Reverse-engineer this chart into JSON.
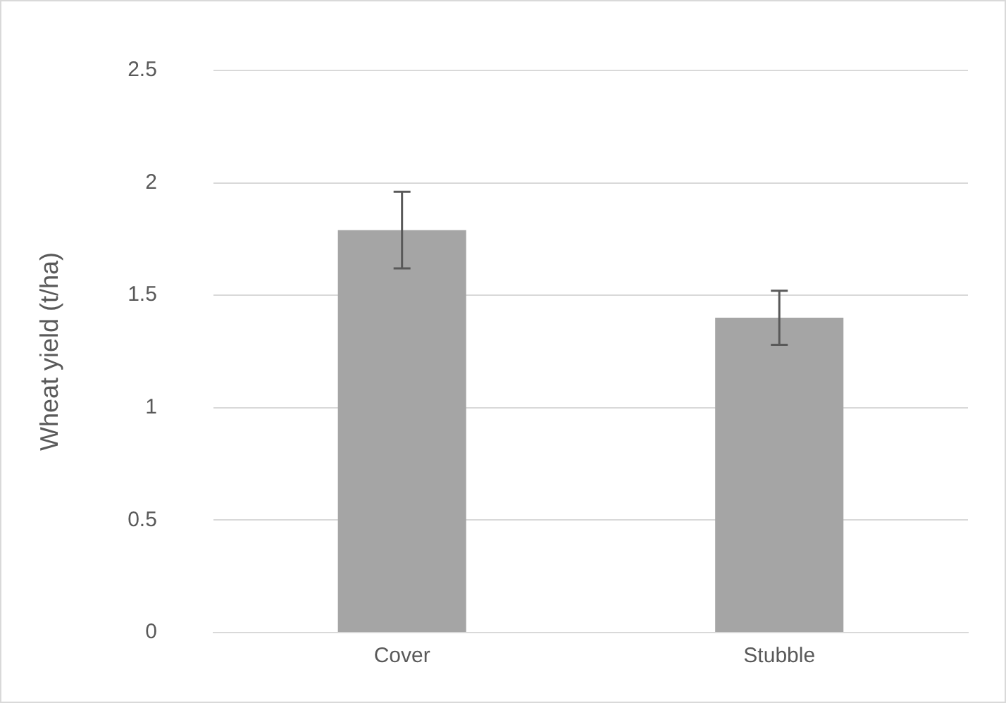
{
  "chart_data": {
    "type": "bar",
    "ylabel": "Wheat yield (t/ha)",
    "categories": [
      "Cover",
      "Stubble"
    ],
    "values": [
      1.79,
      1.4
    ],
    "errors": [
      0.17,
      0.12
    ],
    "color": "#a5a5a5",
    "ylim": [
      0,
      2.5
    ],
    "yticks": [
      0,
      0.5,
      1,
      1.5,
      2,
      2.5
    ],
    "grid": "y"
  }
}
